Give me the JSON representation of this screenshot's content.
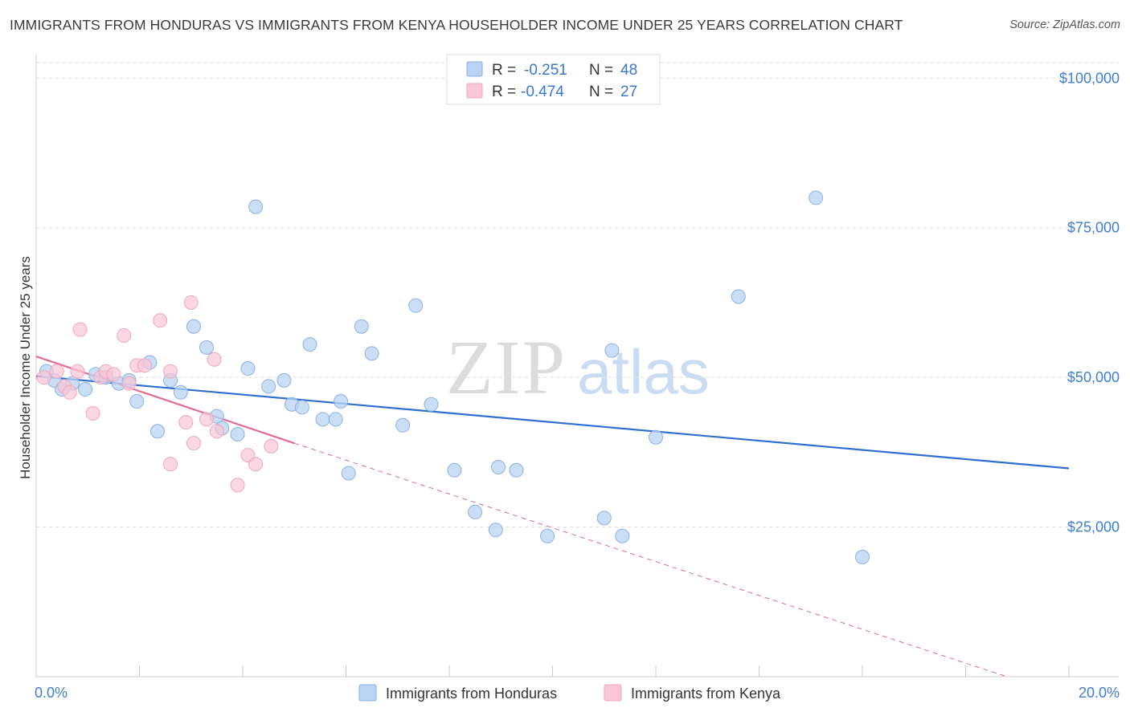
{
  "title": "IMMIGRANTS FROM HONDURAS VS IMMIGRANTS FROM KENYA HOUSEHOLDER INCOME UNDER 25 YEARS CORRELATION CHART",
  "source": "Source: ZipAtlas.com",
  "watermark": {
    "zip": "ZIP",
    "atlas": "atlas"
  },
  "colors": {
    "honduras_fill": "#b8d4f2",
    "honduras_stroke": "#8ab3e3",
    "honduras_line": "#2e6fd0",
    "kenya_fill": "#f8c6d6",
    "kenya_stroke": "#eea7bf",
    "kenya_line": "#e36b93",
    "axis_label": "#3f7fd0",
    "grid": "#dddddd"
  },
  "chart_data": {
    "type": "scatter",
    "title": "IMMIGRANTS FROM HONDURAS VS IMMIGRANTS FROM KENYA HOUSEHOLDER INCOME UNDER 25 YEARS CORRELATION CHART",
    "xlabel": "",
    "ylabel": "Householder Income Under 25 years",
    "xlim": [
      0,
      20
    ],
    "ylim": [
      0,
      105000
    ],
    "x_tick_labels": {
      "left": "0.0%",
      "right": "20.0%"
    },
    "y_ticks": [
      {
        "value": 25000,
        "label": "$25,000"
      },
      {
        "value": 50000,
        "label": "$50,000"
      },
      {
        "value": 75000,
        "label": "$75,000"
      },
      {
        "value": 100000,
        "label": "$100,000"
      }
    ],
    "legend": [
      {
        "series": "Immigrants from Honduras",
        "r_label": "R =",
        "r": "-0.251",
        "n_label": "N =",
        "n": "48"
      },
      {
        "series": "Immigrants from Kenya",
        "r_label": "R =",
        "r": "-0.474",
        "n_label": "N =",
        "n": "27"
      }
    ],
    "series": [
      {
        "name": "Immigrants from Honduras",
        "points": [
          [
            0.2,
            51000
          ],
          [
            0.35,
            49500
          ],
          [
            0.5,
            48000
          ],
          [
            0.7,
            49000
          ],
          [
            0.95,
            48000
          ],
          [
            1.15,
            50500
          ],
          [
            1.35,
            50000
          ],
          [
            1.6,
            49000
          ],
          [
            1.8,
            49500
          ],
          [
            1.95,
            46000
          ],
          [
            2.2,
            52500
          ],
          [
            2.35,
            41000
          ],
          [
            2.6,
            49500
          ],
          [
            2.8,
            47500
          ],
          [
            3.05,
            58500
          ],
          [
            3.3,
            55000
          ],
          [
            3.5,
            43500
          ],
          [
            3.6,
            41500
          ],
          [
            3.9,
            40500
          ],
          [
            4.1,
            51500
          ],
          [
            4.25,
            78500
          ],
          [
            4.5,
            48500
          ],
          [
            4.8,
            49500
          ],
          [
            4.95,
            45500
          ],
          [
            5.15,
            45000
          ],
          [
            5.3,
            55500
          ],
          [
            5.55,
            43000
          ],
          [
            5.8,
            43000
          ],
          [
            5.9,
            46000
          ],
          [
            6.05,
            34000
          ],
          [
            6.3,
            58500
          ],
          [
            6.5,
            54000
          ],
          [
            7.1,
            42000
          ],
          [
            7.35,
            62000
          ],
          [
            7.65,
            45500
          ],
          [
            8.1,
            34500
          ],
          [
            8.5,
            27500
          ],
          [
            8.9,
            24500
          ],
          [
            8.95,
            35000
          ],
          [
            9.3,
            34500
          ],
          [
            9.9,
            23500
          ],
          [
            11.0,
            26500
          ],
          [
            11.15,
            54500
          ],
          [
            11.35,
            23500
          ],
          [
            12.0,
            40000
          ],
          [
            13.6,
            63500
          ],
          [
            15.1,
            80000
          ],
          [
            16.0,
            20000
          ]
        ],
        "trend": {
          "x": [
            0,
            20
          ],
          "y": [
            50200,
            34800
          ]
        }
      },
      {
        "name": "Immigrants from Kenya",
        "points": [
          [
            0.15,
            50000
          ],
          [
            0.4,
            51000
          ],
          [
            0.55,
            48500
          ],
          [
            0.8,
            51000
          ],
          [
            0.85,
            58000
          ],
          [
            1.1,
            44000
          ],
          [
            1.25,
            50000
          ],
          [
            1.35,
            51000
          ],
          [
            1.5,
            50500
          ],
          [
            1.7,
            57000
          ],
          [
            1.8,
            49000
          ],
          [
            1.95,
            52000
          ],
          [
            2.1,
            52000
          ],
          [
            2.4,
            59500
          ],
          [
            2.6,
            35500
          ],
          [
            2.6,
            51000
          ],
          [
            2.9,
            42500
          ],
          [
            3.0,
            62500
          ],
          [
            3.05,
            39000
          ],
          [
            3.45,
            53000
          ],
          [
            3.5,
            41000
          ],
          [
            3.9,
            32000
          ],
          [
            4.1,
            37000
          ],
          [
            4.25,
            35500
          ],
          [
            4.55,
            38500
          ],
          [
            0.65,
            47500
          ],
          [
            3.3,
            43000
          ]
        ],
        "trend": {
          "x": [
            0,
            5.0
          ],
          "y": [
            53500,
            39000
          ]
        },
        "trend_dashed": {
          "x": [
            5.0,
            18.8
          ],
          "y": [
            39000,
            0
          ]
        }
      }
    ]
  }
}
